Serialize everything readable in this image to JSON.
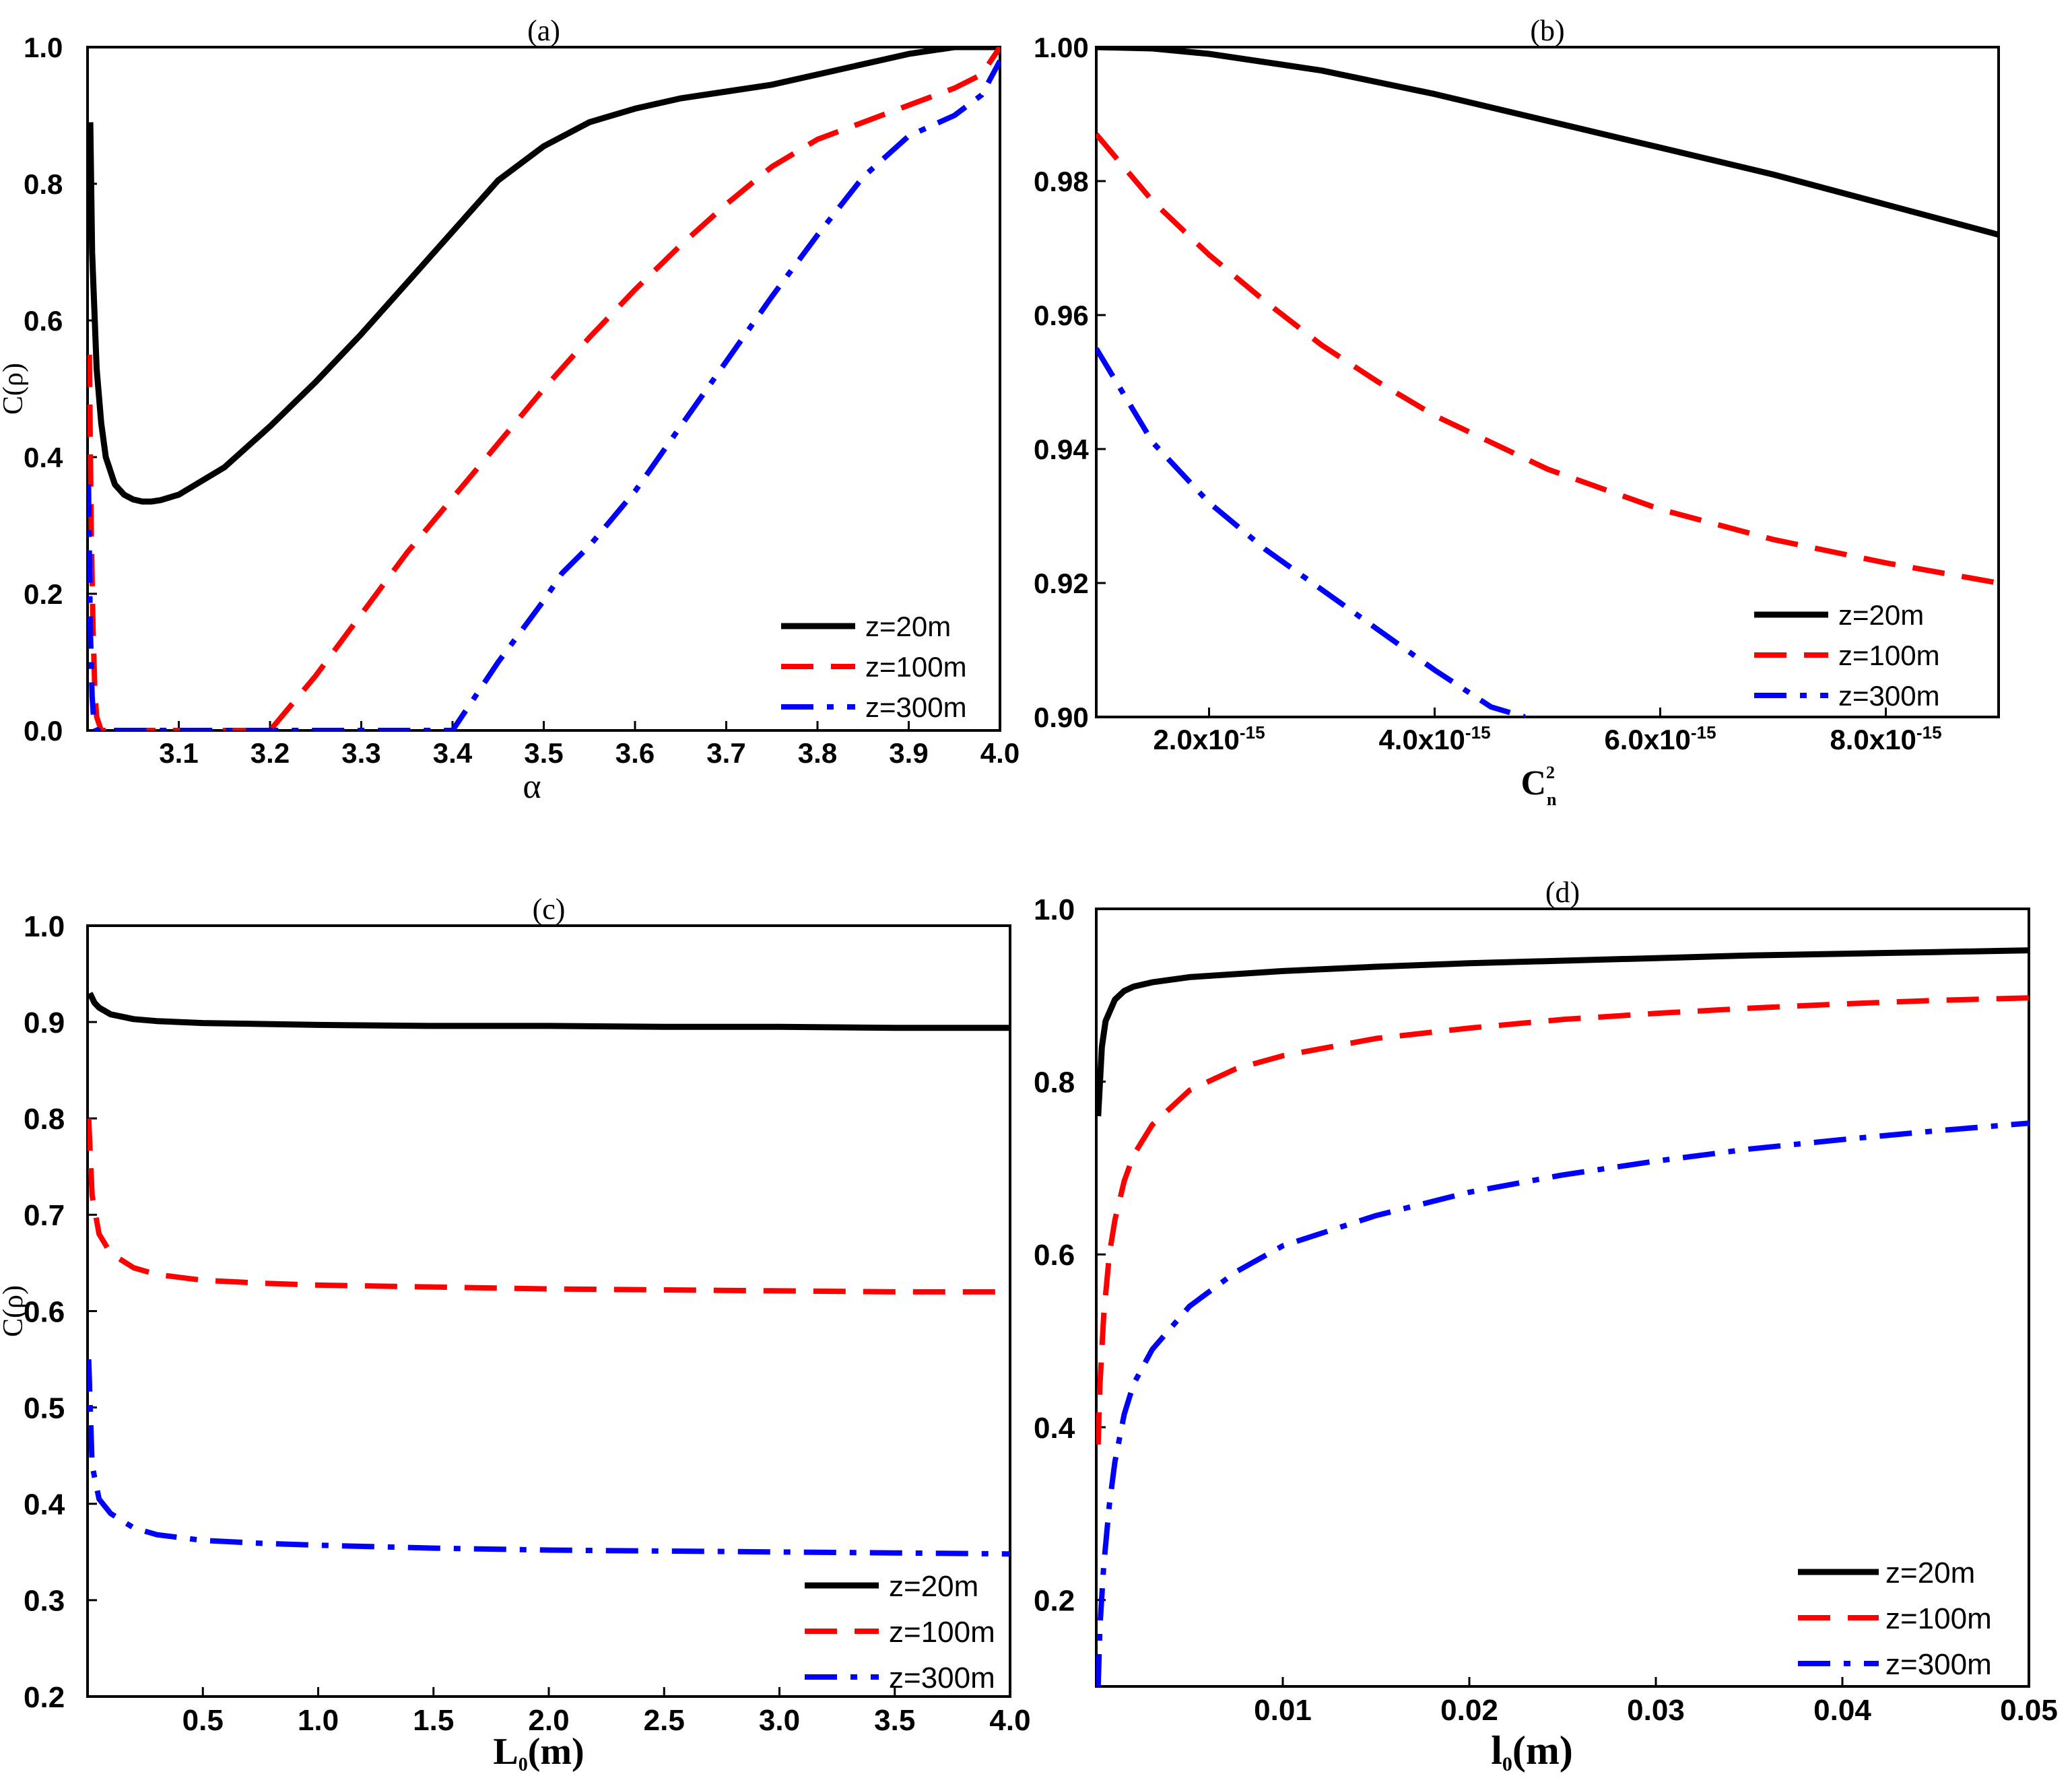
{
  "colors": {
    "z20": "#000000",
    "z100": "#ff0000",
    "z300": "#0000ff"
  },
  "chart_data": [
    {
      "id": "a",
      "type": "line",
      "title": "(a)",
      "xlabel": "α",
      "ylabel": "C(ρ)",
      "xlim": [
        3.0,
        4.0
      ],
      "ylim": [
        0.0,
        1.0
      ],
      "xticks": [
        3.1,
        3.2,
        3.3,
        3.4,
        3.5,
        3.6,
        3.7,
        3.8,
        3.9,
        4.0
      ],
      "xtick_labels": [
        "3.1",
        "3.2",
        "3.3",
        "3.4",
        "3.5",
        "3.6",
        "3.7",
        "3.8",
        "3.9",
        "4.0"
      ],
      "yticks": [
        0.0,
        0.2,
        0.4,
        0.6,
        0.8,
        1.0
      ],
      "ytick_labels": [
        "0.0",
        "0.2",
        "0.4",
        "0.6",
        "0.8",
        "1.0"
      ],
      "legend": "bottom-right",
      "series": [
        {
          "name": "z=20m",
          "style": "solid",
          "color": "#000000",
          "x": [
            3.003,
            3.005,
            3.01,
            3.015,
            3.02,
            3.03,
            3.04,
            3.05,
            3.06,
            3.07,
            3.08,
            3.1,
            3.15,
            3.2,
            3.25,
            3.3,
            3.35,
            3.4,
            3.45,
            3.5,
            3.55,
            3.6,
            3.65,
            3.7,
            3.75,
            3.8,
            3.85,
            3.9,
            3.95,
            4.0
          ],
          "y": [
            0.89,
            0.7,
            0.53,
            0.45,
            0.4,
            0.36,
            0.345,
            0.338,
            0.335,
            0.335,
            0.337,
            0.345,
            0.385,
            0.445,
            0.51,
            0.58,
            0.655,
            0.73,
            0.805,
            0.855,
            0.89,
            0.91,
            0.925,
            0.935,
            0.945,
            0.96,
            0.975,
            0.99,
            1.0,
            1.0
          ]
        },
        {
          "name": "z=100m",
          "style": "dashed",
          "color": "#ff0000",
          "x": [
            3.002,
            3.004,
            3.006,
            3.008,
            3.01,
            3.015,
            3.2,
            3.25,
            3.3,
            3.35,
            3.4,
            3.45,
            3.5,
            3.55,
            3.6,
            3.65,
            3.7,
            3.75,
            3.8,
            3.85,
            3.9,
            3.95,
            3.98,
            4.0
          ],
          "y": [
            0.55,
            0.3,
            0.15,
            0.06,
            0.02,
            0.0,
            0.0,
            0.08,
            0.17,
            0.26,
            0.34,
            0.42,
            0.5,
            0.575,
            0.645,
            0.71,
            0.77,
            0.825,
            0.865,
            0.89,
            0.915,
            0.94,
            0.96,
            1.0
          ]
        },
        {
          "name": "z=300m",
          "style": "dashdot",
          "color": "#0000ff",
          "x": [
            3.001,
            3.003,
            3.005,
            3.007,
            3.01,
            3.4,
            3.45,
            3.5,
            3.52,
            3.55,
            3.6,
            3.65,
            3.7,
            3.75,
            3.8,
            3.85,
            3.9,
            3.95,
            3.98,
            4.0
          ],
          "y": [
            0.36,
            0.15,
            0.05,
            0.01,
            0.0,
            0.0,
            0.1,
            0.19,
            0.23,
            0.27,
            0.35,
            0.445,
            0.54,
            0.635,
            0.725,
            0.81,
            0.87,
            0.9,
            0.93,
            0.98
          ]
        }
      ]
    },
    {
      "id": "b",
      "type": "line",
      "title": "(b)",
      "xlabel": "C",
      "xlabel_sup": "2",
      "xlabel_sub": "n",
      "ylabel": "",
      "xlim": [
        1e-15,
        9e-15
      ],
      "ylim": [
        0.9,
        1.0
      ],
      "xticks": [
        2e-15,
        4e-15,
        6e-15,
        8e-15
      ],
      "xtick_labels": [
        "2.0x10",
        "4.0x10",
        "6.0x10",
        "8.0x10"
      ],
      "xtick_exponent": "-15",
      "yticks": [
        0.9,
        0.92,
        0.94,
        0.96,
        0.98,
        1.0
      ],
      "ytick_labels": [
        "0.90",
        "0.92",
        "0.94",
        "0.96",
        "0.98",
        "1.00"
      ],
      "legend": "bottom-right",
      "series": [
        {
          "name": "z=20m",
          "style": "solid",
          "color": "#000000",
          "x": [
            1e-15,
            1.5e-15,
            2e-15,
            3e-15,
            4e-15,
            5e-15,
            6e-15,
            7e-15,
            8e-15,
            9e-15
          ],
          "y": [
            1.0,
            0.9998,
            0.999,
            0.9965,
            0.993,
            0.989,
            0.985,
            0.981,
            0.9765,
            0.972
          ]
        },
        {
          "name": "z=100m",
          "style": "dashed",
          "color": "#ff0000",
          "x": [
            1e-15,
            1.5e-15,
            2e-15,
            2.5e-15,
            3e-15,
            3.5e-15,
            4e-15,
            5e-15,
            6e-15,
            7e-15,
            8e-15,
            9e-15
          ],
          "y": [
            0.987,
            0.977,
            0.969,
            0.962,
            0.9555,
            0.95,
            0.945,
            0.937,
            0.931,
            0.9265,
            0.923,
            0.92
          ]
        },
        {
          "name": "z=300m",
          "style": "dashdot",
          "color": "#0000ff",
          "x": [
            1e-15,
            1.5e-15,
            2e-15,
            2.5e-15,
            3e-15,
            3.5e-15,
            4e-15,
            4.5e-15,
            4.8e-15
          ],
          "y": [
            0.955,
            0.941,
            0.932,
            0.925,
            0.919,
            0.913,
            0.907,
            0.9015,
            0.9
          ]
        }
      ]
    },
    {
      "id": "c",
      "type": "line",
      "title": "(c)",
      "xlabel": "L",
      "xlabel_sub": "0",
      "xlabel_unit": "(m)",
      "ylabel": "C(ρ)",
      "xlim": [
        0.0,
        4.0
      ],
      "ylim": [
        0.2,
        1.0
      ],
      "xticks": [
        0.5,
        1.0,
        1.5,
        2.0,
        2.5,
        3.0,
        3.5,
        4.0
      ],
      "xtick_labels": [
        "0.5",
        "1.0",
        "1.5",
        "2.0",
        "2.5",
        "3.0",
        "3.5",
        "4.0"
      ],
      "yticks": [
        0.2,
        0.3,
        0.4,
        0.5,
        0.6,
        0.7,
        0.8,
        0.9,
        1.0
      ],
      "ytick_labels": [
        "0.2",
        "0.3",
        "0.4",
        "0.5",
        "0.6",
        "0.7",
        "0.8",
        "0.9",
        "1.0"
      ],
      "legend": "bottom-right",
      "series": [
        {
          "name": "z=20m",
          "style": "solid",
          "color": "#000000",
          "x": [
            0.01,
            0.03,
            0.05,
            0.1,
            0.2,
            0.3,
            0.5,
            1.0,
            1.5,
            2.0,
            2.5,
            3.0,
            3.5,
            4.0
          ],
          "y": [
            0.93,
            0.92,
            0.915,
            0.908,
            0.903,
            0.901,
            0.899,
            0.897,
            0.896,
            0.896,
            0.895,
            0.895,
            0.894,
            0.894
          ]
        },
        {
          "name": "z=100m",
          "style": "dashed",
          "color": "#ff0000",
          "x": [
            0.005,
            0.02,
            0.05,
            0.1,
            0.2,
            0.3,
            0.5,
            0.75,
            1.0,
            1.5,
            2.0,
            2.5,
            3.0,
            3.5,
            4.0
          ],
          "y": [
            0.8,
            0.72,
            0.68,
            0.66,
            0.645,
            0.638,
            0.632,
            0.629,
            0.627,
            0.625,
            0.623,
            0.622,
            0.621,
            0.62,
            0.62
          ]
        },
        {
          "name": "z=300m",
          "style": "dashdot",
          "color": "#0000ff",
          "x": [
            0.005,
            0.02,
            0.05,
            0.1,
            0.2,
            0.3,
            0.5,
            0.75,
            1.0,
            1.5,
            2.0,
            2.5,
            3.0,
            3.5,
            4.0
          ],
          "y": [
            0.55,
            0.44,
            0.405,
            0.39,
            0.375,
            0.368,
            0.362,
            0.359,
            0.357,
            0.354,
            0.352,
            0.351,
            0.35,
            0.349,
            0.348
          ]
        }
      ]
    },
    {
      "id": "d",
      "type": "line",
      "title": "(d)",
      "xlabel": "l",
      "xlabel_sub": "0",
      "xlabel_unit": "(m)",
      "ylabel": "",
      "xlim": [
        0.0,
        0.05
      ],
      "ylim": [
        0.1,
        1.0
      ],
      "xticks": [
        0.01,
        0.02,
        0.03,
        0.04,
        0.05
      ],
      "xtick_labels": [
        "0.01",
        "0.02",
        "0.03",
        "0.04",
        "0.05"
      ],
      "yticks": [
        0.2,
        0.4,
        0.6,
        0.8,
        1.0
      ],
      "ytick_labels": [
        "0.2",
        "0.4",
        "0.6",
        "0.8",
        "1.0"
      ],
      "legend": "bottom-right",
      "series": [
        {
          "name": "z=20m",
          "style": "solid",
          "color": "#000000",
          "x": [
            0.0001,
            0.0003,
            0.0005,
            0.001,
            0.0015,
            0.002,
            0.003,
            0.005,
            0.01,
            0.015,
            0.02,
            0.025,
            0.03,
            0.035,
            0.04,
            0.045,
            0.05
          ],
          "y": [
            0.76,
            0.84,
            0.87,
            0.895,
            0.905,
            0.91,
            0.915,
            0.921,
            0.928,
            0.933,
            0.937,
            0.94,
            0.943,
            0.946,
            0.948,
            0.95,
            0.952
          ]
        },
        {
          "name": "z=100m",
          "style": "dashed",
          "color": "#ff0000",
          "x": [
            0.0001,
            0.0002,
            0.0004,
            0.0007,
            0.001,
            0.0015,
            0.002,
            0.003,
            0.005,
            0.0075,
            0.01,
            0.015,
            0.02,
            0.025,
            0.03,
            0.035,
            0.04,
            0.045,
            0.05
          ],
          "y": [
            0.38,
            0.45,
            0.53,
            0.6,
            0.64,
            0.685,
            0.715,
            0.75,
            0.79,
            0.815,
            0.83,
            0.85,
            0.862,
            0.872,
            0.879,
            0.885,
            0.89,
            0.894,
            0.897
          ]
        },
        {
          "name": "z=300m",
          "style": "dashdot",
          "color": "#0000ff",
          "x": [
            0.0001,
            0.0002,
            0.0004,
            0.0007,
            0.001,
            0.0015,
            0.002,
            0.003,
            0.005,
            0.0075,
            0.01,
            0.015,
            0.02,
            0.025,
            0.03,
            0.035,
            0.04,
            0.045,
            0.05
          ],
          "y": [
            0.1,
            0.17,
            0.24,
            0.31,
            0.36,
            0.415,
            0.45,
            0.49,
            0.54,
            0.58,
            0.61,
            0.645,
            0.672,
            0.692,
            0.708,
            0.722,
            0.733,
            0.743,
            0.752
          ]
        }
      ]
    }
  ]
}
